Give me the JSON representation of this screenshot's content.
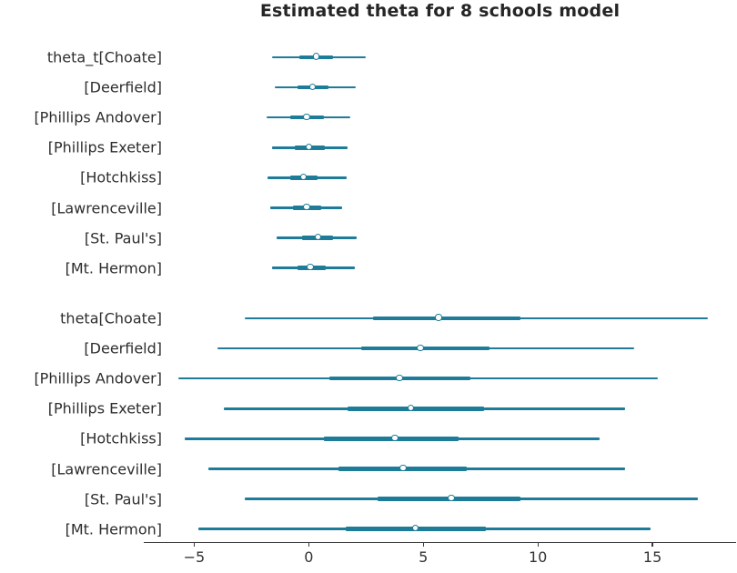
{
  "title": "Estimated theta for 8 schools model",
  "chart_data": {
    "type": "forest",
    "title": "Estimated theta for 8 schools model",
    "xlabel": "",
    "ylabel": "",
    "xlim": [
      -7.2,
      18.65
    ],
    "grid": false,
    "legend": false,
    "x_ticks": [
      {
        "label": "−5",
        "value": -5
      },
      {
        "label": "0",
        "value": 0
      },
      {
        "label": "5",
        "value": 5
      },
      {
        "label": "10",
        "value": 10
      },
      {
        "label": "15",
        "value": 15
      }
    ],
    "groups": [
      {
        "rows": [
          {
            "label": "theta_t[Choate]",
            "ci": [
              -1.6,
              2.5
            ],
            "iqr": [
              -0.4,
              1.05
            ],
            "median": 0.35
          },
          {
            "label": "[Deerfield]",
            "ci": [
              -1.5,
              2.05
            ],
            "iqr": [
              -0.5,
              0.85
            ],
            "median": 0.2
          },
          {
            "label": "[Phillips Andover]",
            "ci": [
              -1.85,
              1.8
            ],
            "iqr": [
              -0.8,
              0.65
            ],
            "median": -0.05
          },
          {
            "label": "[Phillips Exeter]",
            "ci": [
              -1.6,
              1.7
            ],
            "iqr": [
              -0.6,
              0.7
            ],
            "median": 0.05
          },
          {
            "label": "[Hotchkiss]",
            "ci": [
              -1.8,
              1.65
            ],
            "iqr": [
              -0.8,
              0.4
            ],
            "median": -0.2
          },
          {
            "label": "[Lawrenceville]",
            "ci": [
              -1.7,
              1.45
            ],
            "iqr": [
              -0.7,
              0.55
            ],
            "median": -0.05
          },
          {
            "label": "[St. Paul's]",
            "ci": [
              -1.4,
              2.1
            ],
            "iqr": [
              -0.3,
              1.05
            ],
            "median": 0.45
          },
          {
            "label": "[Mt. Hermon]",
            "ci": [
              -1.6,
              2.0
            ],
            "iqr": [
              -0.5,
              0.75
            ],
            "median": 0.1
          }
        ]
      },
      {
        "rows": [
          {
            "label": "theta[Choate]",
            "ci": [
              -2.8,
              17.4
            ],
            "iqr": [
              2.8,
              9.25
            ],
            "median": 5.7
          },
          {
            "label": "[Deerfield]",
            "ci": [
              -4.0,
              14.2
            ],
            "iqr": [
              2.3,
              7.9
            ],
            "median": 4.9
          },
          {
            "label": "[Phillips Andover]",
            "ci": [
              -5.7,
              15.25
            ],
            "iqr": [
              0.9,
              7.05
            ],
            "median": 4.0
          },
          {
            "label": "[Phillips Exeter]",
            "ci": [
              -3.7,
              13.8
            ],
            "iqr": [
              1.7,
              7.65
            ],
            "median": 4.5
          },
          {
            "label": "[Hotchkiss]",
            "ci": [
              -5.4,
              12.7
            ],
            "iqr": [
              0.65,
              6.55
            ],
            "median": 3.8
          },
          {
            "label": "[Lawrenceville]",
            "ci": [
              -4.4,
              13.8
            ],
            "iqr": [
              1.3,
              6.9
            ],
            "median": 4.15
          },
          {
            "label": "[St. Paul's]",
            "ci": [
              -2.8,
              17.0
            ],
            "iqr": [
              3.0,
              9.25
            ],
            "median": 6.25
          },
          {
            "label": "[Mt. Hermon]",
            "ci": [
              -4.8,
              14.9
            ],
            "iqr": [
              1.6,
              7.75
            ],
            "median": 4.7
          }
        ]
      }
    ],
    "colors": {
      "line": "#1E7C99",
      "median_fill": "#FFFFFF",
      "label_text": "#2D2D2D",
      "axis": "#3A3A3A",
      "title_text": "#252525"
    }
  }
}
